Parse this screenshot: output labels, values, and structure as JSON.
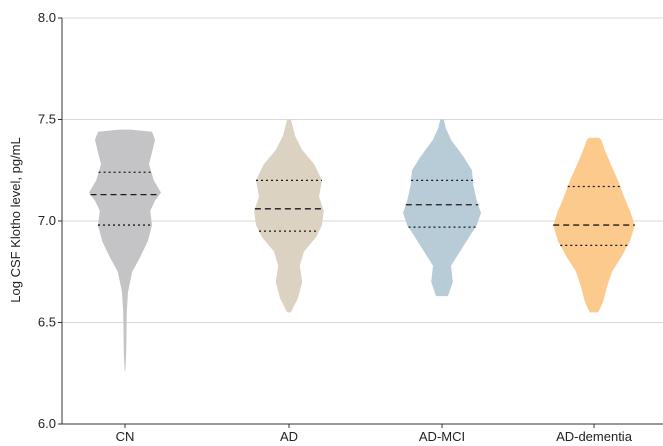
{
  "chart_data": {
    "type": "violin",
    "ylabel": "Log CSF Klotho level, pg/mL",
    "ylim": [
      6.0,
      8.0
    ],
    "yticks": [
      "6.0",
      "6.5",
      "7.0",
      "7.5",
      "8.0"
    ],
    "grid": true,
    "categories": [
      "CN",
      "AD",
      "AD-MCI",
      "AD-dementia"
    ],
    "series": [
      {
        "category": "CN",
        "color": "#c4c4c6",
        "min": 6.26,
        "max": 7.45,
        "q1": 6.98,
        "median": 7.13,
        "q3": 7.24,
        "profile": [
          [
            6.26,
            0.005
          ],
          [
            6.35,
            0.02
          ],
          [
            6.45,
            0.025
          ],
          [
            6.55,
            0.03
          ],
          [
            6.65,
            0.05
          ],
          [
            6.75,
            0.12
          ],
          [
            6.82,
            0.25
          ],
          [
            6.9,
            0.38
          ],
          [
            6.98,
            0.45
          ],
          [
            7.05,
            0.42
          ],
          [
            7.1,
            0.5
          ],
          [
            7.14,
            0.6
          ],
          [
            7.2,
            0.48
          ],
          [
            7.28,
            0.4
          ],
          [
            7.35,
            0.46
          ],
          [
            7.4,
            0.5
          ],
          [
            7.44,
            0.45
          ],
          [
            7.45,
            0.1
          ]
        ]
      },
      {
        "category": "AD",
        "color": "#dcd2c2",
        "min": 6.55,
        "max": 7.5,
        "q1": 6.95,
        "median": 7.06,
        "q3": 7.2,
        "profile": [
          [
            6.55,
            0.03
          ],
          [
            6.62,
            0.15
          ],
          [
            6.7,
            0.22
          ],
          [
            6.78,
            0.18
          ],
          [
            6.85,
            0.25
          ],
          [
            6.92,
            0.45
          ],
          [
            6.98,
            0.55
          ],
          [
            7.05,
            0.58
          ],
          [
            7.12,
            0.5
          ],
          [
            7.2,
            0.55
          ],
          [
            7.28,
            0.42
          ],
          [
            7.35,
            0.22
          ],
          [
            7.42,
            0.1
          ],
          [
            7.48,
            0.05
          ],
          [
            7.5,
            0.03
          ]
        ]
      },
      {
        "category": "AD-MCI",
        "color": "#b8ccd8",
        "min": 6.63,
        "max": 7.5,
        "q1": 6.97,
        "median": 7.08,
        "q3": 7.2,
        "profile": [
          [
            6.63,
            0.1
          ],
          [
            6.7,
            0.18
          ],
          [
            6.78,
            0.15
          ],
          [
            6.85,
            0.3
          ],
          [
            6.92,
            0.45
          ],
          [
            6.98,
            0.58
          ],
          [
            7.04,
            0.65
          ],
          [
            7.1,
            0.58
          ],
          [
            7.18,
            0.52
          ],
          [
            7.25,
            0.5
          ],
          [
            7.32,
            0.35
          ],
          [
            7.4,
            0.15
          ],
          [
            7.46,
            0.06
          ],
          [
            7.5,
            0.03
          ]
        ]
      },
      {
        "category": "AD-dementia",
        "color": "#fdca8e",
        "min": 6.55,
        "max": 7.41,
        "q1": 6.88,
        "median": 6.98,
        "q3": 7.17,
        "profile": [
          [
            6.55,
            0.07
          ],
          [
            6.6,
            0.15
          ],
          [
            6.68,
            0.22
          ],
          [
            6.75,
            0.3
          ],
          [
            6.82,
            0.45
          ],
          [
            6.9,
            0.6
          ],
          [
            6.98,
            0.68
          ],
          [
            7.05,
            0.6
          ],
          [
            7.12,
            0.5
          ],
          [
            7.2,
            0.4
          ],
          [
            7.28,
            0.28
          ],
          [
            7.35,
            0.18
          ],
          [
            7.4,
            0.12
          ],
          [
            7.41,
            0.08
          ]
        ]
      }
    ]
  }
}
